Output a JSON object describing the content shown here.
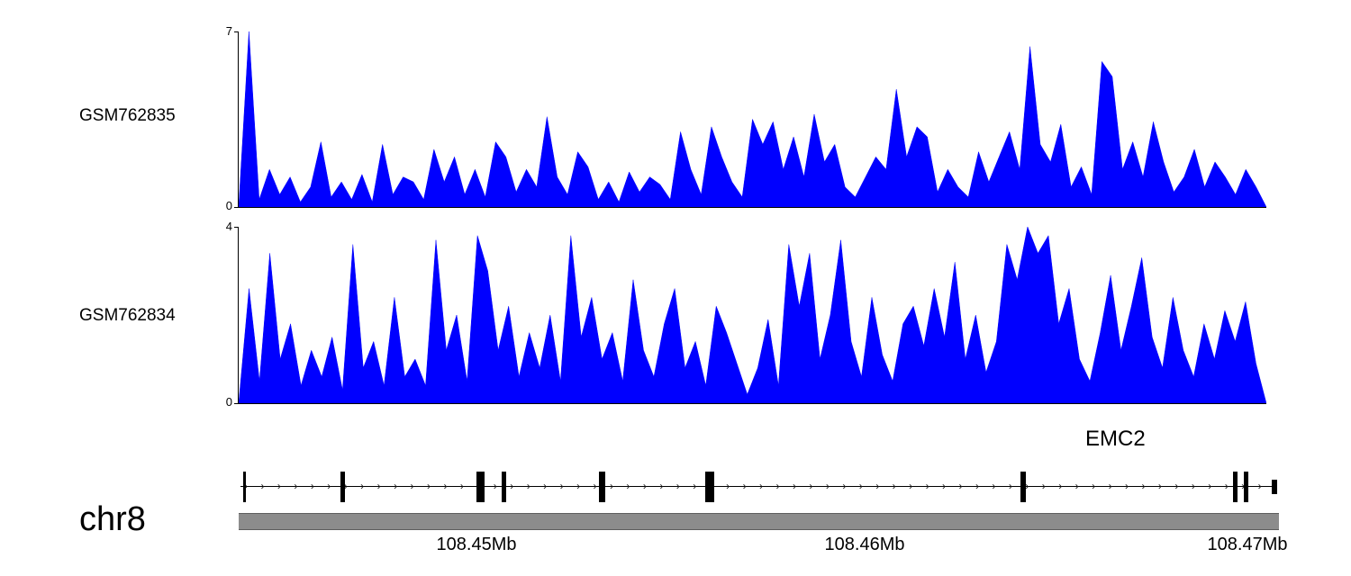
{
  "colors": {
    "signal": "#0000ff",
    "chromosome_bar": "#8c8c8c",
    "text": "#000000"
  },
  "tracks": [
    {
      "label": "GSM762835",
      "ymax_label": "7",
      "ymin_label": "0"
    },
    {
      "label": "GSM762834",
      "ymax_label": "4",
      "ymin_label": "0"
    }
  ],
  "gene": {
    "name": "EMC2",
    "chromosome": "chr8",
    "strand": "+",
    "strand_arrow": "›",
    "arrow_count": 62,
    "exons": [
      {
        "x": 0.006,
        "w": 3,
        "h": "full"
      },
      {
        "x": 0.1,
        "w": 5,
        "h": "full"
      },
      {
        "x": 0.232,
        "w": 9,
        "h": "full"
      },
      {
        "x": 0.255,
        "w": 5,
        "h": "full"
      },
      {
        "x": 0.349,
        "w": 7,
        "h": "full"
      },
      {
        "x": 0.453,
        "w": 10,
        "h": "full"
      },
      {
        "x": 0.754,
        "w": 6,
        "h": "full"
      },
      {
        "x": 0.958,
        "w": 5,
        "h": "full"
      },
      {
        "x": 0.968,
        "w": 5,
        "h": "full"
      },
      {
        "x": 0.996,
        "w": 6,
        "h": "half"
      }
    ]
  },
  "axis": {
    "start_mb": 108.444,
    "end_mb": 108.471,
    "labels": [
      {
        "text": "108.45Mb",
        "x": 0.229
      },
      {
        "text": "108.46Mb",
        "x": 0.602
      },
      {
        "text": "108.47Mb",
        "x": 0.97
      }
    ]
  },
  "chart_data": [
    {
      "type": "area",
      "name": "GSM762835",
      "ylabel_ticks": [
        0,
        7
      ],
      "ylim": [
        0,
        7
      ],
      "x_range_mb": [
        108.444,
        108.471
      ],
      "values": [
        0,
        7,
        0.3,
        1.5,
        0.5,
        1.2,
        0.2,
        0.8,
        2.6,
        0.4,
        1.0,
        0.3,
        1.3,
        0.2,
        2.5,
        0.5,
        1.2,
        1.0,
        0.3,
        2.3,
        1.0,
        2.0,
        0.5,
        1.5,
        0.4,
        2.6,
        2.0,
        0.6,
        1.5,
        0.8,
        3.6,
        1.2,
        0.5,
        2.2,
        1.6,
        0.3,
        1.0,
        0.2,
        1.4,
        0.6,
        1.2,
        0.9,
        0.3,
        3.0,
        1.5,
        0.5,
        3.2,
        2.0,
        1.0,
        0.4,
        3.5,
        2.5,
        3.4,
        1.5,
        2.8,
        1.2,
        3.7,
        1.8,
        2.5,
        0.8,
        0.4,
        1.2,
        2.0,
        1.5,
        4.7,
        2.0,
        3.2,
        2.8,
        0.6,
        1.5,
        0.8,
        0.4,
        2.2,
        1.0,
        2.0,
        3.0,
        1.5,
        6.4,
        2.5,
        1.8,
        3.3,
        0.8,
        1.6,
        0.5,
        5.8,
        5.2,
        1.5,
        2.6,
        1.2,
        3.4,
        1.8,
        0.6,
        1.2,
        2.3,
        0.8,
        1.8,
        1.2,
        0.5,
        1.5,
        0.8,
        0
      ]
    },
    {
      "type": "area",
      "name": "GSM762834",
      "ylabel_ticks": [
        0,
        4
      ],
      "ylim": [
        0,
        4
      ],
      "x_range_mb": [
        108.444,
        108.471
      ],
      "values": [
        0,
        2.6,
        0.5,
        3.4,
        1.0,
        1.8,
        0.4,
        1.2,
        0.6,
        1.5,
        0.3,
        3.6,
        0.8,
        1.4,
        0.4,
        2.4,
        0.6,
        1.0,
        0.4,
        3.7,
        1.2,
        2.0,
        0.5,
        3.8,
        3.0,
        1.2,
        2.2,
        0.6,
        1.6,
        0.8,
        2.0,
        0.5,
        3.8,
        1.5,
        2.4,
        1.0,
        1.6,
        0.5,
        2.8,
        1.2,
        0.6,
        1.8,
        2.6,
        0.8,
        1.4,
        0.4,
        2.2,
        1.6,
        0.9,
        0.2,
        0.8,
        1.9,
        0.4,
        3.6,
        2.2,
        3.4,
        1.0,
        2.0,
        3.7,
        1.4,
        0.6,
        2.4,
        1.1,
        0.5,
        1.8,
        2.2,
        1.3,
        2.6,
        1.5,
        3.2,
        1.0,
        2.0,
        0.7,
        1.4,
        3.6,
        2.8,
        4.0,
        3.4,
        3.8,
        1.8,
        2.6,
        1.0,
        0.5,
        1.6,
        2.9,
        1.2,
        2.2,
        3.3,
        1.5,
        0.8,
        2.4,
        1.2,
        0.6,
        1.8,
        1.0,
        2.1,
        1.4,
        2.3,
        0.9,
        0
      ]
    }
  ]
}
